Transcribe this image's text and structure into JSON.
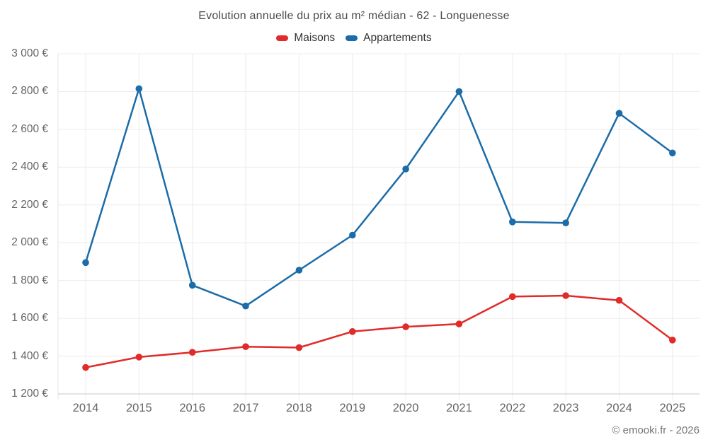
{
  "title": "Evolution annuelle du prix au m² médian - 62 - Longuenesse",
  "footer": "© emooki.fr - 2026",
  "colors": {
    "maisons": "#e02b2b",
    "appartements": "#1b6ca8",
    "gridline": "#ececec",
    "axis_line": "#c9c9c9",
    "y_axis_line": "#e3e3e3",
    "tick_text": "#666666",
    "title_text": "#4b4b4b"
  },
  "chart_data": {
    "type": "line",
    "title": "Evolution annuelle du prix au m² médian - 62 - Longuenesse",
    "xlabel": "",
    "ylabel": "",
    "x": [
      "2014",
      "2015",
      "2016",
      "2017",
      "2018",
      "2019",
      "2020",
      "2021",
      "2022",
      "2023",
      "2024",
      "2025"
    ],
    "series": [
      {
        "name": "Maisons",
        "color": "#e02b2b",
        "values": [
          1340,
          1395,
          1420,
          1450,
          1445,
          1530,
          1555,
          1570,
          1715,
          1720,
          1695,
          1485
        ]
      },
      {
        "name": "Appartements",
        "color": "#1b6ca8",
        "values": [
          1895,
          2815,
          1775,
          1665,
          1855,
          2040,
          2390,
          2800,
          2110,
          2105,
          2685,
          2475
        ]
      }
    ],
    "ylim": [
      1200,
      3000
    ],
    "ytick_step": 200,
    "yticks": [
      {
        "value": 1200,
        "label": "1 200 €"
      },
      {
        "value": 1400,
        "label": "1 400 €"
      },
      {
        "value": 1600,
        "label": "1 600 €"
      },
      {
        "value": 1800,
        "label": "1 800 €"
      },
      {
        "value": 2000,
        "label": "2 000 €"
      },
      {
        "value": 2200,
        "label": "2 200 €"
      },
      {
        "value": 2400,
        "label": "2 400 €"
      },
      {
        "value": 2600,
        "label": "2 600 €"
      },
      {
        "value": 2800,
        "label": "2 800 €"
      },
      {
        "value": 3000,
        "label": "3 000 €"
      }
    ],
    "grid": true,
    "legend_position": "top",
    "marker": "circle"
  }
}
